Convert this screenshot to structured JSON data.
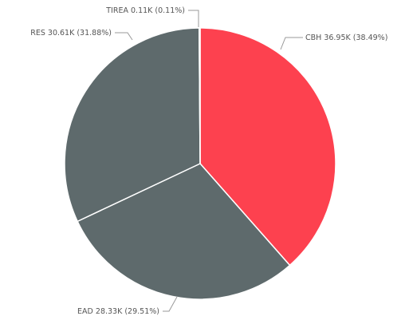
{
  "chart_data": {
    "type": "pie",
    "categories": [
      "CBH",
      "EAD",
      "RES",
      "TIREA"
    ],
    "values": [
      36950,
      28330,
      30610,
      110
    ],
    "value_labels": [
      "36.95K (38.49%)",
      "28.33K (29.51%)",
      "30.61K (31.88%)",
      "0.11K (0.11%)"
    ],
    "colors": [
      "#fd414f",
      "#5e6a6c",
      "#5e6a6c",
      "#5e6a6c"
    ]
  }
}
